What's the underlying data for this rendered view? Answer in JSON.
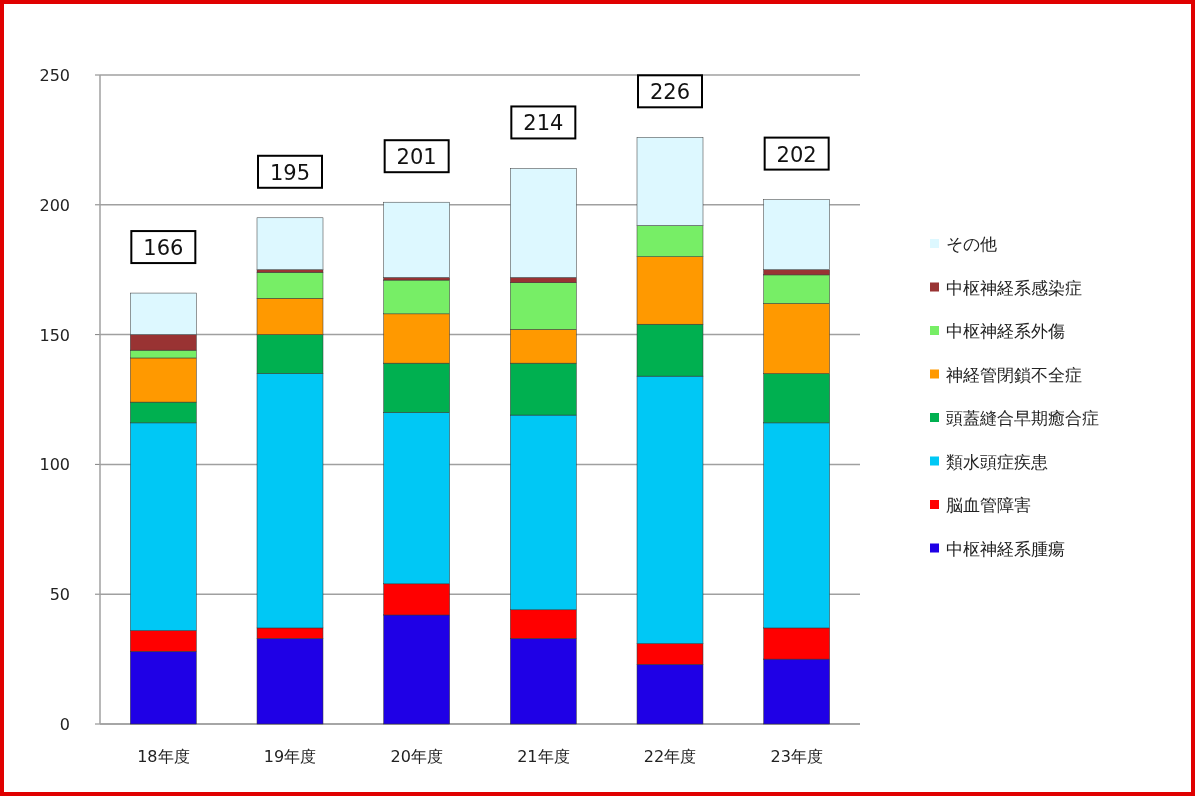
{
  "chart_data": {
    "type": "bar",
    "stacked": true,
    "categories": [
      "18年度",
      "19年度",
      "20年度",
      "21年度",
      "22年度",
      "23年度"
    ],
    "series": [
      {
        "name": "中枢神経系腫瘍",
        "color": "#1f00e6",
        "values": [
          28,
          33,
          42,
          33,
          23,
          25
        ]
      },
      {
        "name": "脳血管障害",
        "color": "#ff0000",
        "values": [
          8,
          4,
          12,
          11,
          8,
          12
        ]
      },
      {
        "name": "類水頭症疾患",
        "color": "#00c8f5",
        "values": [
          80,
          98,
          66,
          75,
          103,
          79
        ]
      },
      {
        "name": "頭蓋縫合早期癒合症",
        "color": "#00b050",
        "values": [
          8,
          15,
          19,
          20,
          20,
          19
        ]
      },
      {
        "name": "神経管閉鎖不全症",
        "color": "#ff9900",
        "values": [
          17,
          14,
          19,
          13,
          26,
          27
        ]
      },
      {
        "name": "中枢神経系外傷",
        "color": "#77ee66",
        "values": [
          3,
          10,
          13,
          18,
          12,
          11
        ]
      },
      {
        "name": "中枢神経系感染症",
        "color": "#993333",
        "values": [
          6,
          1,
          1,
          2,
          0,
          2
        ]
      },
      {
        "name": "その他",
        "color": "#ddf8ff",
        "values": [
          16,
          20,
          29,
          42,
          34,
          27
        ]
      }
    ],
    "totals": [
      "166",
      "195",
      "201",
      "214",
      "226",
      "202"
    ],
    "ylim": [
      0,
      250
    ],
    "yticks": [
      0,
      50,
      100,
      150,
      200,
      250
    ],
    "grid": "y",
    "legend": "right"
  }
}
